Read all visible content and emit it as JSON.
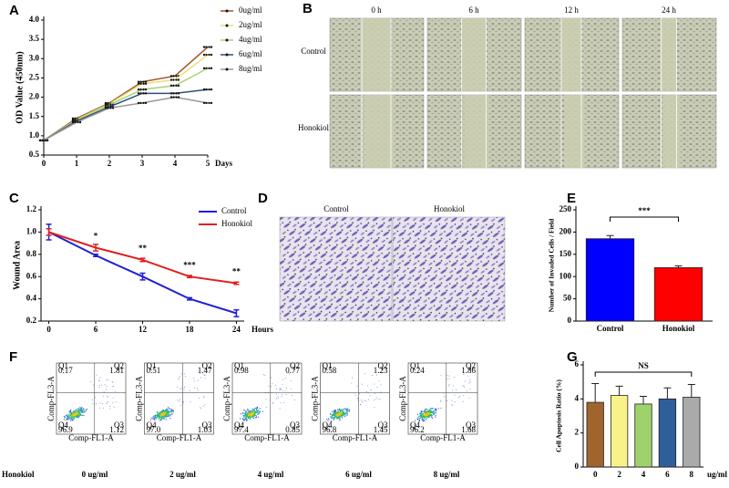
{
  "chart_data": [
    {
      "panel": "A",
      "type": "line",
      "x_label": "Days",
      "y_label": "OD Value (450nm)",
      "x": [
        0,
        1,
        2,
        3,
        4,
        5
      ],
      "xlim": [
        0,
        5
      ],
      "xticks": [
        0,
        1,
        2,
        3,
        4,
        5
      ],
      "ylim": [
        0.5,
        4.0
      ],
      "yticks": [
        0.5,
        {
          "value": 1,
          "label": "1.0"
        },
        1.5,
        {
          "value": 2,
          "label": "2.0"
        },
        2.5,
        {
          "value": 3,
          "label": "3.0"
        },
        3.5,
        {
          "value": 4,
          "label": "4.0"
        }
      ],
      "legend": "right",
      "markers": true,
      "series": [
        {
          "name": "0ug/ml",
          "color": "#a0522d",
          "values": [
            0.88,
            1.45,
            1.85,
            2.4,
            2.55,
            3.3
          ]
        },
        {
          "name": "2ug/ml",
          "color": "#e8e07a",
          "values": [
            0.88,
            1.42,
            1.83,
            2.35,
            2.45,
            3.1
          ]
        },
        {
          "name": "4ug/ml",
          "color": "#a8d27a",
          "values": [
            0.88,
            1.4,
            1.8,
            2.2,
            2.3,
            2.75
          ]
        },
        {
          "name": "6ug/ml",
          "color": "#2c4f7c",
          "values": [
            0.88,
            1.38,
            1.75,
            2.1,
            2.1,
            2.2
          ]
        },
        {
          "name": "8ug/ml",
          "color": "#999999",
          "values": [
            0.88,
            1.35,
            1.72,
            1.85,
            2.0,
            1.85
          ]
        }
      ]
    },
    {
      "panel": "C",
      "type": "line",
      "x_label": "Hours",
      "y_label": "Wound Area",
      "x": [
        0,
        6,
        12,
        18,
        24
      ],
      "xlim": [
        -1,
        25
      ],
      "xticks": [
        0,
        6,
        12,
        18,
        24
      ],
      "ylim": [
        0.2,
        1.2
      ],
      "yticks": [
        0.2,
        0.4,
        0.6,
        0.8,
        {
          "value": 1,
          "label": "1.0"
        },
        1.2
      ],
      "legend": "upper right",
      "markers": false,
      "significance": [
        null,
        "*",
        "**",
        "***",
        "**"
      ],
      "series": [
        {
          "name": "Control",
          "color": "#1f1fd6",
          "values": [
            1.0,
            0.79,
            0.6,
            0.4,
            0.27
          ],
          "errors": [
            0.07,
            0.01,
            0.03,
            0.01,
            0.03
          ]
        },
        {
          "name": "Honokiol",
          "color": "#e02020",
          "values": [
            1.0,
            0.86,
            0.75,
            0.6,
            0.54
          ],
          "errors": [
            0.03,
            0.03,
            0.015,
            0.01,
            0.01
          ]
        }
      ]
    },
    {
      "panel": "E",
      "type": "bar",
      "y_label": "Number of Invaded Cells / Field",
      "categories": [
        "Control",
        "Honokiol"
      ],
      "values": [
        185,
        120
      ],
      "errors": [
        7,
        4
      ],
      "colors": [
        "#0000ff",
        "#ff0000"
      ],
      "ylim": [
        0,
        250
      ],
      "yticks": [
        0,
        50,
        100,
        150,
        200,
        250
      ],
      "significance": "***"
    },
    {
      "panel": "G",
      "type": "bar",
      "y_label": "Cell Apoptosis Ratio (%)",
      "x_label": "ug/ml",
      "categories": [
        "0",
        "2",
        "4",
        "6",
        "8"
      ],
      "values": [
        3.8,
        4.2,
        3.7,
        4.0,
        4.1
      ],
      "errors": [
        1.1,
        0.55,
        0.45,
        0.65,
        0.75
      ],
      "colors": [
        "#a0642c",
        "#f8f28a",
        "#9fd26a",
        "#2f5f9a",
        "#aaaaaa"
      ],
      "ylim": [
        0,
        6
      ],
      "yticks": [
        0,
        2,
        4,
        6
      ],
      "significance": "NS"
    }
  ],
  "wound_healing": {
    "panel": "B",
    "columns": [
      "0 h",
      "6 h",
      "12 h",
      "24 h"
    ],
    "rows": [
      "Control",
      "Honokiol"
    ]
  },
  "transwell": {
    "panel": "D",
    "columns": [
      "Control",
      "Honokiol"
    ]
  },
  "flow_cytometry": {
    "panel": "F",
    "row_label": "Honokiol",
    "x_axis": "Comp-FL1-A",
    "y_axis": "Comp-FL3-A",
    "plots": [
      {
        "label": "0 ug/ml",
        "quadrants": [
          "Q1",
          "Q2",
          "Q3",
          "Q4"
        ],
        "values": [
          0.17,
          1.81,
          1.12,
          96.9
        ]
      },
      {
        "label": "2 ug/ml",
        "quadrants": [
          "Q1",
          "Q2",
          "Q3",
          "Q4"
        ],
        "values": [
          0.51,
          1.47,
          1.03,
          97.0
        ],
        "value_labels": [
          "0.51",
          "1.47",
          "1.03",
          "97.0"
        ]
      },
      {
        "label": "4 ug/ml",
        "quadrants": [
          "Q1",
          "Q2",
          "Q3",
          "Q4"
        ],
        "values": [
          0.98,
          0.77,
          0.85,
          97.4
        ]
      },
      {
        "label": "6 ug/ml",
        "quadrants": [
          "Q1",
          "Q2",
          "Q3",
          "Q4"
        ],
        "values": [
          0.58,
          1.23,
          1.45,
          96.8
        ]
      },
      {
        "label": "8 ug/ml",
        "quadrants": [
          "Q1",
          "Q2",
          "Q3",
          "Q4"
        ],
        "values": [
          0.24,
          1.86,
          1.68,
          96.2
        ]
      }
    ]
  }
}
